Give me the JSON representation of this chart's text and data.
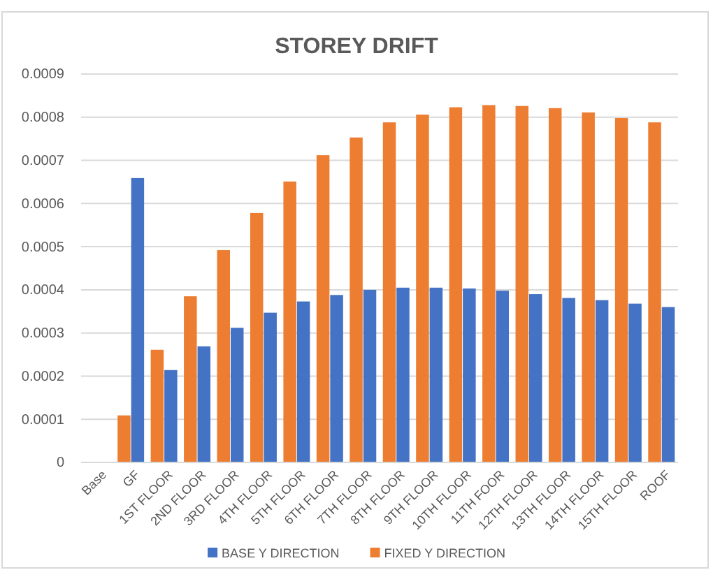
{
  "chart_data": {
    "type": "bar",
    "title": "STOREY DRIFT",
    "categories": [
      "Base",
      "GF",
      "1ST FLOOR",
      "2ND FLOOR",
      "3RD FLOOR",
      "4TH FLOOR",
      "5TH FLOOR",
      "6TH FLOOR",
      "7TH FLOOR",
      "8TH FLOOR",
      "9TH FLOOR",
      "10TH FLOOR",
      "11TH FOOR",
      "12TH FLOOR",
      "13TH FLOOR",
      "14TH FLOOR",
      "15TH FLOOR",
      "ROOF"
    ],
    "series": [
      {
        "name": "FIXED Y DIRECTION",
        "color": "#ed7d31",
        "values": [
          null,
          0.000109,
          0.000261,
          0.000385,
          0.000492,
          0.000578,
          0.000651,
          0.000712,
          0.000753,
          0.000788,
          0.000806,
          0.000823,
          0.000828,
          0.000826,
          0.000821,
          0.000811,
          0.000798,
          0.000788
        ]
      },
      {
        "name": "BASE Y DIRECTION",
        "color": "#4472c4",
        "values": [
          null,
          0.000659,
          0.000214,
          0.000269,
          0.000312,
          0.000347,
          0.000373,
          0.000388,
          0.0004,
          0.000405,
          0.000405,
          0.000403,
          0.000398,
          0.00039,
          0.000381,
          0.000376,
          0.000368,
          0.00036
        ]
      }
    ],
    "ylim": [
      0,
      0.0009
    ],
    "yticks": [
      0,
      0.0001,
      0.0002,
      0.0003,
      0.0004,
      0.0005,
      0.0006,
      0.0007,
      0.0008,
      0.0009
    ],
    "grid": "y",
    "legend": "bottom"
  }
}
